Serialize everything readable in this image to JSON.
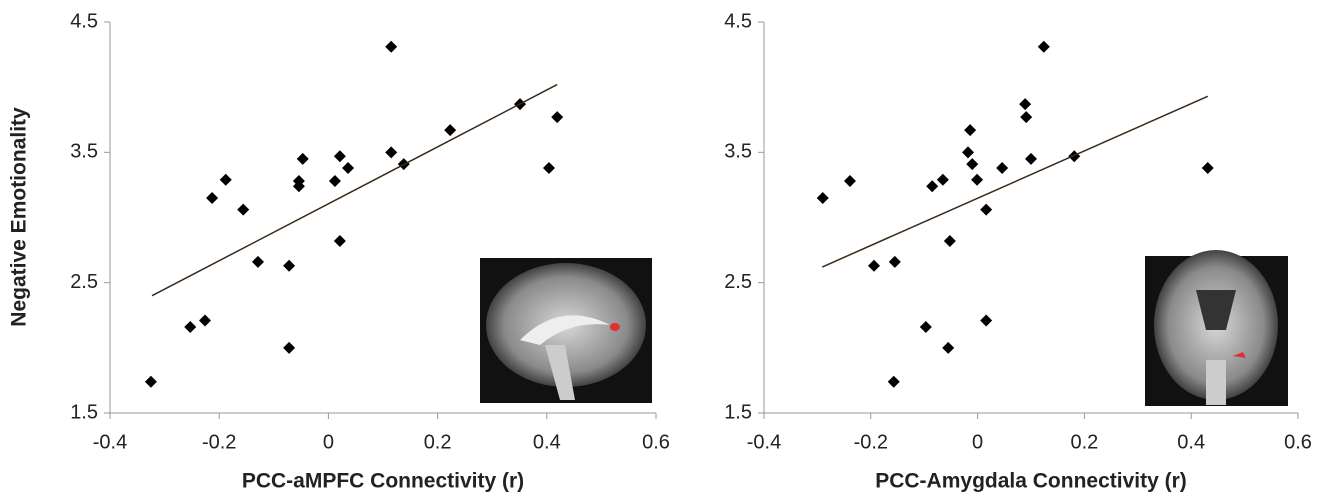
{
  "chart_data": [
    {
      "type": "scatter",
      "x_label": "PCC-aMPFC Connectivity (r)",
      "y_label": "Negative Emotionality",
      "x": [
        -0.325,
        -0.253,
        -0.226,
        -0.213,
        -0.188,
        -0.156,
        -0.129,
        -0.072,
        -0.072,
        -0.054,
        -0.054,
        -0.047,
        0.012,
        0.021,
        0.021,
        0.036,
        0.115,
        0.115,
        0.138,
        0.223,
        0.351,
        0.404,
        0.419
      ],
      "values": [
        1.74,
        2.16,
        2.21,
        3.15,
        3.29,
        3.06,
        2.66,
        2.63,
        2.0,
        3.28,
        3.24,
        3.45,
        3.28,
        2.82,
        3.47,
        3.38,
        4.31,
        3.5,
        3.41,
        3.67,
        3.87,
        3.38,
        3.77
      ],
      "color": "#000000",
      "fit_line": {
        "x": [
          -0.323,
          0.419
        ],
        "y": [
          2.4,
          4.02
        ]
      },
      "xlim": [
        -0.4,
        0.6
      ],
      "xticks": [
        -0.4,
        -0.2,
        0,
        0.2,
        0.4,
        0.6
      ],
      "ylim": [
        1.5,
        4.5
      ],
      "yticks": [
        1.5,
        2.5,
        3.5,
        4.5
      ]
    },
    {
      "type": "scatter",
      "x_label": "PCC-Amygdala Connectivity (r)",
      "x": [
        -0.29,
        -0.239,
        -0.194,
        -0.155,
        -0.157,
        -0.097,
        -0.085,
        -0.065,
        -0.052,
        -0.055,
        -0.018,
        -0.014,
        -0.01,
        -0.001,
        0.016,
        0.016,
        0.046,
        0.089,
        0.091,
        0.1,
        0.124,
        0.181,
        0.431
      ],
      "values": [
        3.15,
        3.28,
        2.63,
        2.66,
        1.74,
        2.16,
        3.24,
        3.29,
        2.82,
        2.0,
        3.5,
        3.67,
        3.41,
        3.29,
        2.21,
        3.06,
        3.38,
        3.87,
        3.77,
        3.45,
        4.31,
        3.47,
        3.38
      ],
      "color": "#000000",
      "fit_line": {
        "x": [
          -0.291,
          0.431
        ],
        "y": [
          2.62,
          3.93
        ]
      },
      "xlim": [
        -0.4,
        0.6
      ],
      "xticks": [
        -0.4,
        -0.2,
        0,
        0.2,
        0.4,
        0.6
      ],
      "ylim": [
        1.5,
        4.5
      ],
      "yticks": [
        1.5,
        2.5,
        3.5,
        4.5
      ]
    }
  ]
}
